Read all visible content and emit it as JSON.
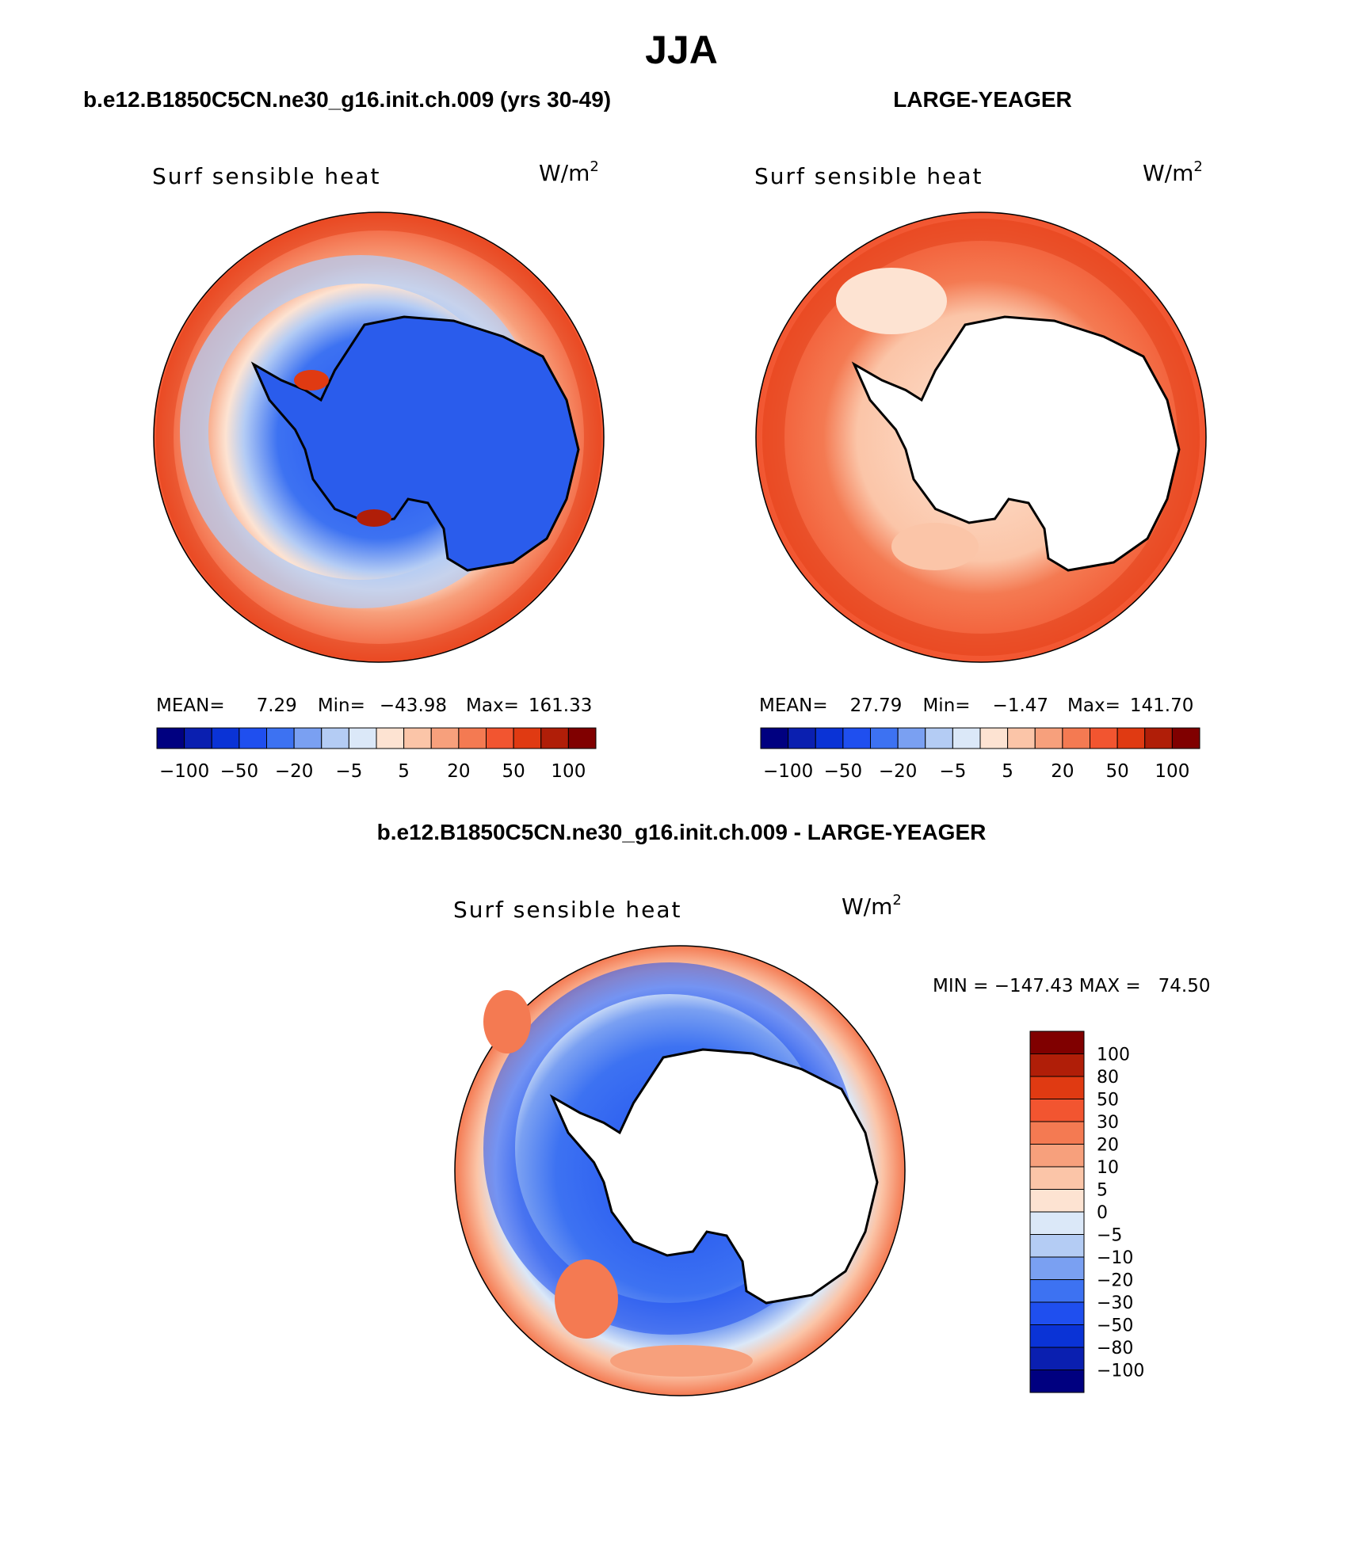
{
  "page_title": "JJA",
  "colors": {
    "seq": [
      "#000080",
      "#0a1fb0",
      "#0a33d6",
      "#1f4fef",
      "#3d72f2",
      "#7aa0f2",
      "#b4ccf4",
      "#dbe8f8",
      "#fde3d2",
      "#fbc5a8",
      "#f7a07c",
      "#f47a52",
      "#f25530",
      "#e03a12",
      "#b01e08",
      "#800000"
    ],
    "diff": [
      "#000080",
      "#0a1fb0",
      "#0a33d6",
      "#1f4fef",
      "#3d72f2",
      "#7aa0f2",
      "#b4ccf4",
      "#dbe8f8",
      "#fde3d2",
      "#fbc5a8",
      "#f7a07c",
      "#f47a52",
      "#f25530",
      "#e03a12",
      "#b01e08",
      "#800000"
    ],
    "coast": "#000000"
  },
  "panel_left": {
    "case_title": "b.e12.B1850C5CN.ne30_g16.init.ch.009 (yrs 30-49)",
    "variable": "Surf sensible heat",
    "units": "W/m",
    "units_exp": "2",
    "stats": {
      "mean_label": "MEAN=",
      "mean": "7.29",
      "min_label": "Min=",
      "min": "−43.98",
      "max_label": "Max=",
      "max": "161.33"
    }
  },
  "panel_right": {
    "case_title": "LARGE-YEAGER",
    "variable": "Surf sensible heat",
    "units": "W/m",
    "units_exp": "2",
    "stats": {
      "mean_label": "MEAN=",
      "mean": "27.79",
      "min_label": "Min=",
      "min": "−1.47",
      "max_label": "Max=",
      "max": "141.70"
    }
  },
  "panel_diff": {
    "case_title": "b.e12.B1850C5CN.ne30_g16.init.ch.009 - LARGE-YEAGER",
    "variable": "Surf sensible heat",
    "units": "W/m",
    "units_exp": "2",
    "minmax": "MIN = −147.43 MAX =   74.50"
  },
  "seq_colorbar_labels": [
    "−100",
    "−50",
    "−20",
    "−5",
    "5",
    "20",
    "50",
    "100"
  ],
  "diff_colorbar_labels": [
    "100",
    "80",
    "50",
    "30",
    "20",
    "10",
    "5",
    "0",
    "−5",
    "−10",
    "−20",
    "−30",
    "−50",
    "−80",
    "−100"
  ]
}
